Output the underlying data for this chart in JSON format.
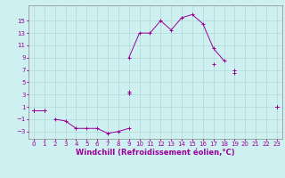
{
  "xlabel": "Windchill (Refroidissement éolien,°C)",
  "background_color": "#cff0f0",
  "grid_color": "#b0d8d8",
  "line_color": "#990099",
  "x": [
    0,
    1,
    2,
    3,
    4,
    5,
    6,
    7,
    8,
    9,
    10,
    11,
    12,
    13,
    14,
    15,
    16,
    17,
    18,
    19,
    20,
    21,
    22,
    23
  ],
  "y1": [
    0.5,
    0.5,
    null,
    null,
    null,
    null,
    null,
    null,
    null,
    9.0,
    13.0,
    13.0,
    15.0,
    13.5,
    15.5,
    16.0,
    14.5,
    10.5,
    8.5,
    null,
    null,
    null,
    null,
    1.0
  ],
  "y2": [
    0.5,
    null,
    -1.0,
    -1.3,
    -2.5,
    -2.5,
    -2.5,
    -3.3,
    -3.0,
    -2.5,
    null,
    null,
    null,
    null,
    null,
    null,
    null,
    null,
    null,
    null,
    null,
    null,
    null,
    null
  ],
  "y3": [
    0.5,
    null,
    null,
    null,
    null,
    null,
    null,
    null,
    null,
    3.5,
    null,
    null,
    null,
    null,
    null,
    null,
    null,
    8.0,
    null,
    7.0,
    null,
    null,
    null,
    1.0
  ],
  "y4": [
    0.5,
    null,
    null,
    null,
    null,
    null,
    null,
    null,
    null,
    3.2,
    null,
    null,
    null,
    null,
    null,
    null,
    null,
    null,
    null,
    6.5,
    null,
    null,
    null,
    1.0
  ],
  "y5": [
    0.5,
    0.5,
    null,
    null,
    null,
    null,
    null,
    null,
    null,
    null,
    null,
    null,
    null,
    null,
    null,
    null,
    null,
    null,
    null,
    null,
    null,
    null,
    null,
    1.0
  ],
  "ylim": [
    -4.2,
    17.5
  ],
  "xlim": [
    -0.5,
    23.5
  ],
  "yticks": [
    -3,
    -1,
    1,
    3,
    5,
    7,
    9,
    11,
    13,
    15
  ],
  "xticks": [
    0,
    1,
    2,
    3,
    4,
    5,
    6,
    7,
    8,
    9,
    10,
    11,
    12,
    13,
    14,
    15,
    16,
    17,
    18,
    19,
    20,
    21,
    22,
    23
  ],
  "tick_fontsize": 5.0,
  "xlabel_fontsize": 6.0
}
